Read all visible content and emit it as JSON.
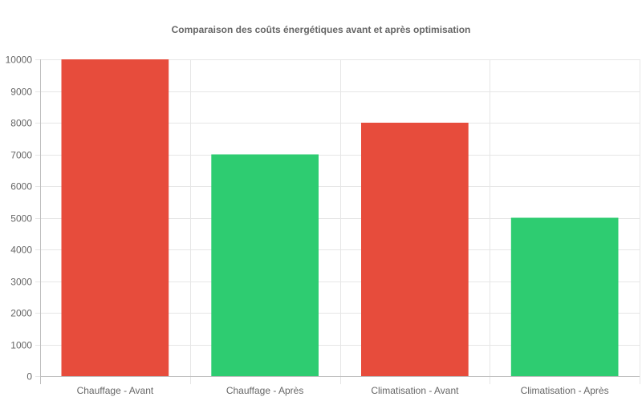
{
  "chart_data": {
    "type": "bar",
    "title": "Comparaison des coûts énergétiques avant et après optimisation",
    "categories": [
      "Chauffage - Avant",
      "Chauffage - Après",
      "Climatisation - Avant",
      "Climatisation - Après"
    ],
    "values": [
      10000,
      7000,
      8000,
      5000
    ],
    "bar_colors": [
      "#e74c3c",
      "#2ecc71",
      "#e74c3c",
      "#2ecc71"
    ],
    "ylim": [
      0,
      10000
    ],
    "yticks": [
      0,
      1000,
      2000,
      3000,
      4000,
      5000,
      6000,
      7000,
      8000,
      9000,
      10000
    ],
    "xlabel": "",
    "ylabel": "",
    "grid": true,
    "legend": "none"
  }
}
